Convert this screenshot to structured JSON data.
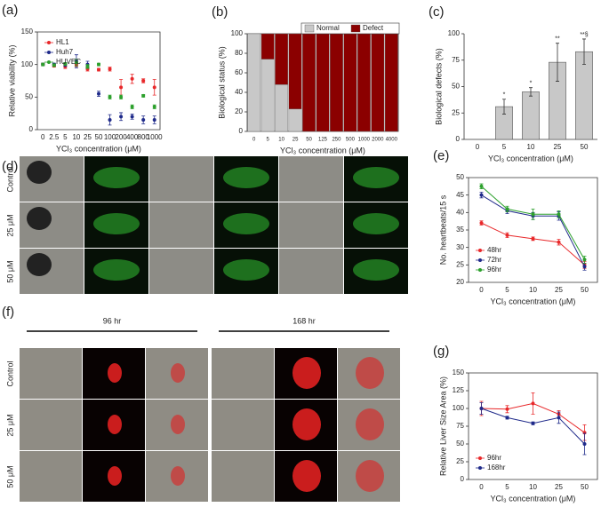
{
  "chart_data": [
    {
      "type": "scatter",
      "panel": "(a)",
      "ylabel": "Relative viability (%)",
      "xlabel": "YCl₃ concentration (μM)",
      "categories": [
        "0",
        "2.5",
        "5",
        "10",
        "25",
        "50",
        "100",
        "200",
        "400",
        "800",
        "1000"
      ],
      "ylim": [
        0,
        150
      ],
      "yticks": [
        0,
        50,
        100,
        150
      ],
      "legend": "upper left",
      "series": [
        {
          "name": "HL1",
          "color": "#e8282a",
          "values": [
            100,
            98,
            97,
            100,
            93,
            92,
            93,
            65,
            78,
            75,
            65
          ],
          "errors": [
            2,
            2,
            3,
            3,
            3,
            2,
            3,
            12,
            7,
            3,
            12
          ]
        },
        {
          "name": "Huh7",
          "color": "#1f2a8a",
          "values": [
            100,
            100,
            100,
            105,
            100,
            55,
            15,
            20,
            20,
            15,
            15
          ],
          "errors": [
            2,
            2,
            3,
            10,
            5,
            4,
            8,
            6,
            4,
            6,
            6
          ]
        },
        {
          "name": "HUVEC",
          "color": "#2ca02c",
          "values": [
            100,
            99,
            101,
            103,
            97,
            100,
            50,
            50,
            35,
            52,
            35
          ],
          "errors": [
            2,
            2,
            2,
            5,
            3,
            2,
            3,
            3,
            3,
            2,
            3
          ]
        }
      ]
    },
    {
      "type": "bar",
      "panel": "(b)",
      "ylabel": "Biological status (%)",
      "xlabel": "YCl₃ concentration (μM)",
      "categories": [
        "0",
        "5",
        "10",
        "25",
        "50",
        "125",
        "250",
        "500",
        "1000",
        "2000",
        "4000"
      ],
      "ylim": [
        0,
        100
      ],
      "yticks": [
        0,
        20,
        40,
        60,
        80,
        100
      ],
      "legend": "top",
      "series": [
        {
          "name": "Normal",
          "color": "#c8c8c8",
          "values": [
            100,
            74,
            48,
            23,
            0,
            0,
            0,
            0,
            0,
            0,
            0
          ]
        },
        {
          "name": "Defect",
          "color": "#8b0000",
          "values": [
            0,
            26,
            52,
            77,
            100,
            100,
            100,
            100,
            100,
            100,
            100
          ]
        }
      ]
    },
    {
      "type": "bar",
      "panel": "(c)",
      "ylabel": "Biological defects (%)",
      "xlabel": "YCl₃ concentration (μM)",
      "categories": [
        "0",
        "5",
        "10",
        "25",
        "50"
      ],
      "color": "#c8c8c8",
      "values": [
        0,
        31,
        45,
        73,
        83
      ],
      "errors": [
        0,
        7,
        4,
        18,
        12
      ],
      "ylim": [
        0,
        100
      ],
      "yticks": [
        0,
        25,
        50,
        75,
        100
      ],
      "annotations": [
        {
          "x": "5",
          "text": "*"
        },
        {
          "x": "10",
          "text": "*"
        },
        {
          "x": "25",
          "text": "**"
        },
        {
          "x": "50",
          "text": "**§"
        }
      ]
    },
    {
      "type": "line",
      "panel": "(e)",
      "ylabel": "No. heartbeats/15 s",
      "xlabel": "YCl₃ concentration (μM)",
      "categories": [
        "0",
        "5",
        "10",
        "25",
        "50"
      ],
      "ylim": [
        20,
        50
      ],
      "yticks": [
        20,
        25,
        30,
        35,
        40,
        45,
        50
      ],
      "legend": "lower left",
      "series": [
        {
          "name": "48hr",
          "color": "#e8282a",
          "values": [
            37,
            33.5,
            32.5,
            31.5,
            25
          ],
          "errors": [
            0.6,
            0.7,
            0.5,
            0.8,
            1
          ]
        },
        {
          "name": "72hr",
          "color": "#1f2a8a",
          "values": [
            45,
            40.5,
            39,
            39,
            24.5
          ],
          "errors": [
            0.8,
            0.8,
            1,
            1.2,
            1
          ]
        },
        {
          "name": "96hr",
          "color": "#2ca02c",
          "values": [
            47.5,
            41,
            39.5,
            39.5,
            26.5
          ],
          "errors": [
            0.7,
            0.8,
            1.5,
            1,
            1
          ]
        }
      ]
    },
    {
      "type": "line",
      "panel": "(g)",
      "ylabel": "Relative Liver Size Area (%)",
      "xlabel": "YCl₃ concentration (μM)",
      "categories": [
        "0",
        "5",
        "10",
        "25",
        "50"
      ],
      "ylim": [
        0,
        150
      ],
      "yticks": [
        0,
        25,
        50,
        75,
        100,
        125,
        150
      ],
      "legend": "lower left",
      "series": [
        {
          "name": "96hr",
          "color": "#e8282a",
          "values": [
            100,
            99,
            107,
            92,
            66
          ],
          "errors": [
            10,
            5,
            15,
            5,
            11
          ]
        },
        {
          "name": "168hr",
          "color": "#1f2a8a",
          "values": [
            100,
            87,
            79,
            87,
            50
          ],
          "errors": [
            8,
            2,
            2,
            8,
            15
          ]
        }
      ]
    }
  ],
  "image_panels": [
    {
      "panel": "(d)",
      "rows": [
        "Control",
        "25 μM",
        "50 μM"
      ]
    },
    {
      "panel": "(f)",
      "groups": [
        "96 hr",
        "168 hr"
      ],
      "rows": [
        "Control",
        "25 μM",
        "50 μM"
      ]
    }
  ]
}
